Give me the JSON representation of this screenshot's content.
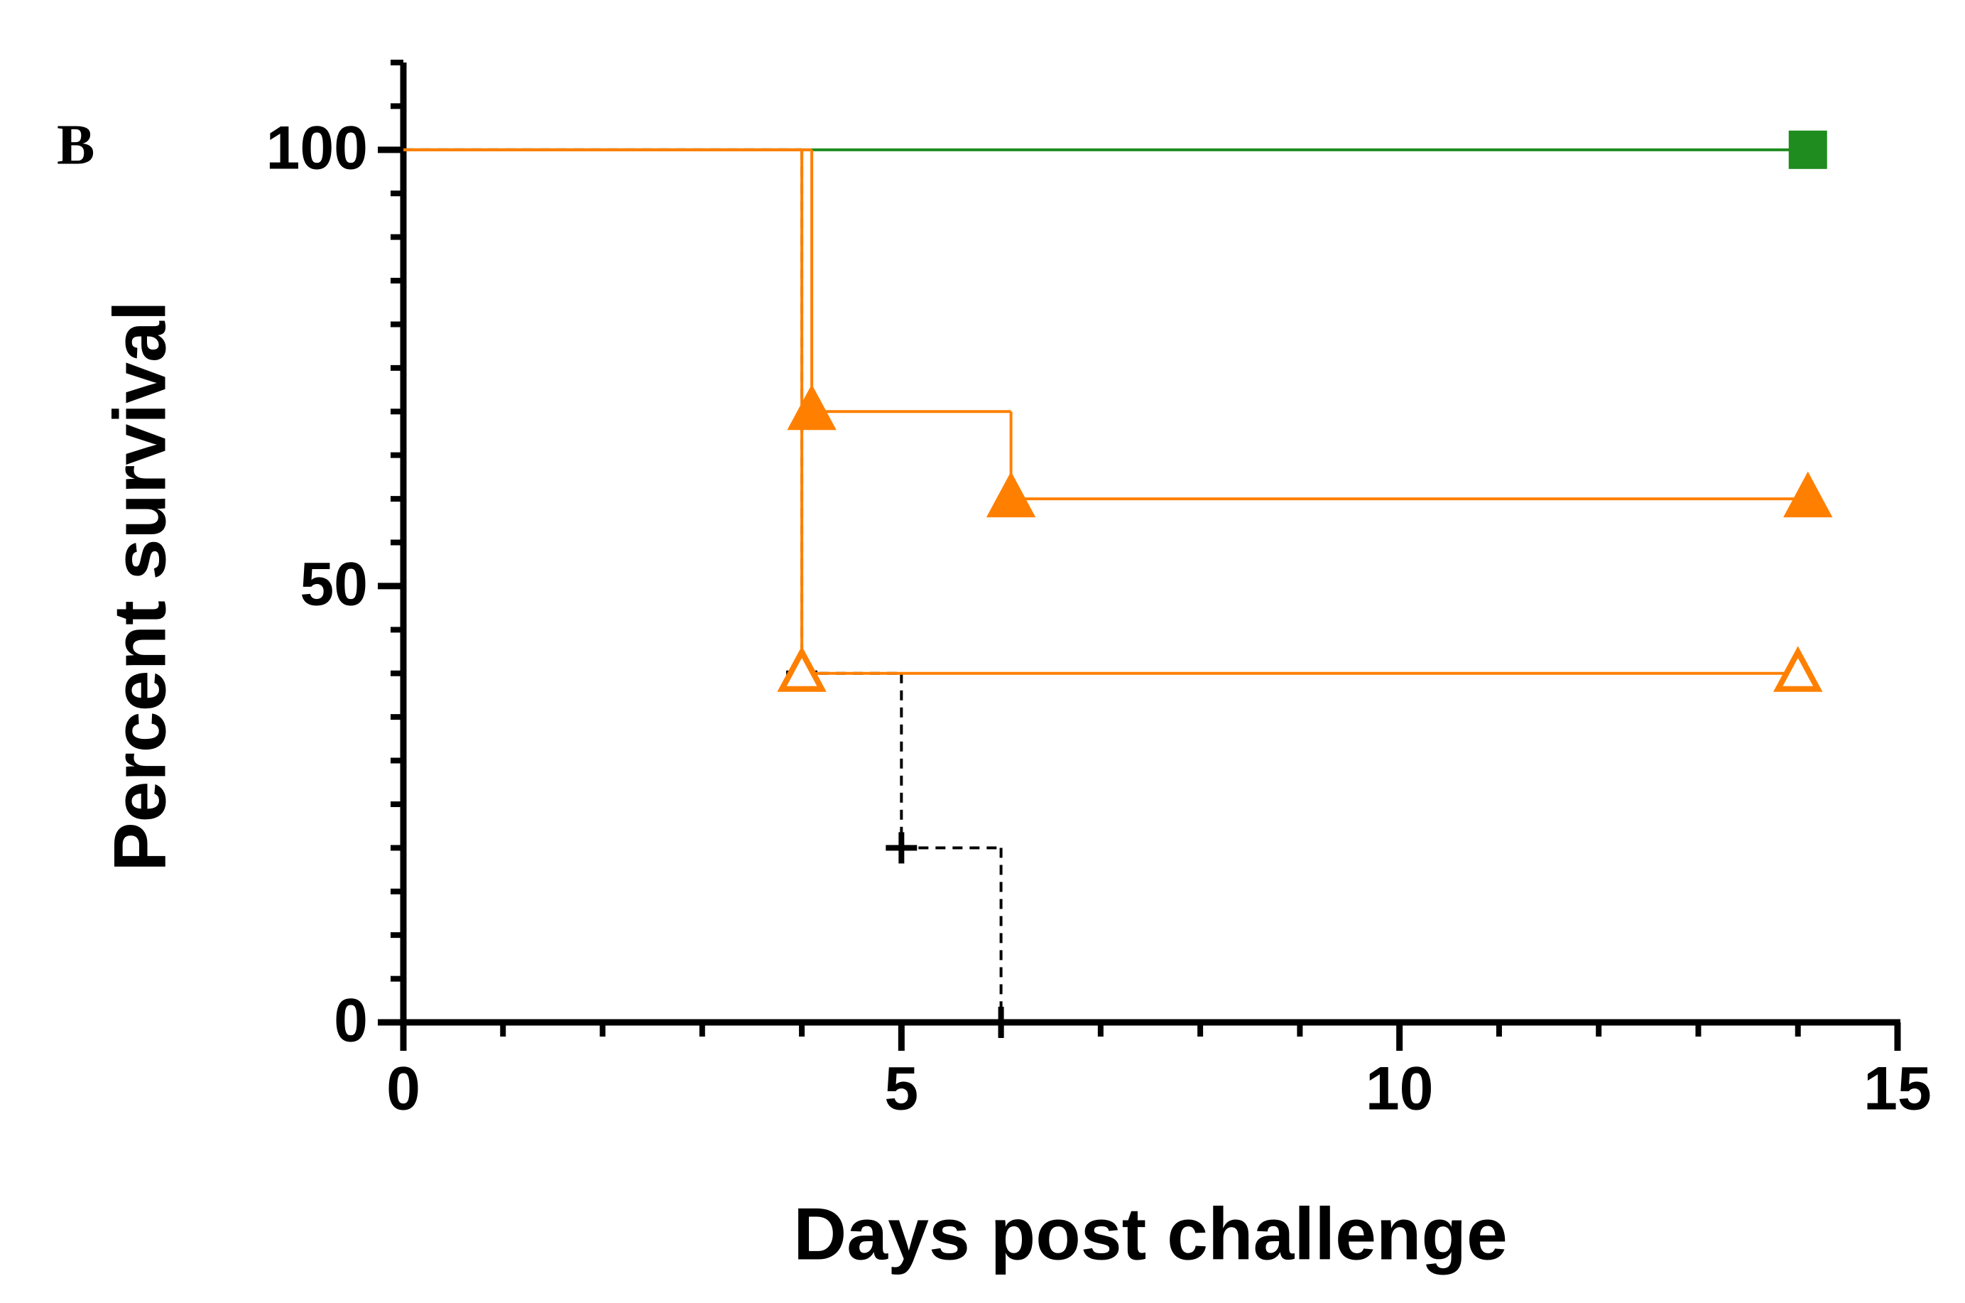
{
  "chart_data": {
    "type": "survival",
    "panel_label": "B",
    "x_label": "Days post challenge",
    "y_label": "Percent survival",
    "xlim": [
      0,
      15
    ],
    "xticks": [
      0,
      5,
      10,
      15
    ],
    "x_minor_step": 1,
    "ylim": [
      0,
      110
    ],
    "yticks": [
      0,
      50,
      100
    ],
    "y_minor_step": 5,
    "series": [
      {
        "color": "#000000",
        "line_style": "dashed",
        "marker": "plus",
        "marker_fill": false,
        "x": [
          0,
          4,
          5,
          6
        ],
        "values": [
          100,
          40,
          20,
          0
        ]
      },
      {
        "color": "#1e8c1e",
        "line_style": "solid",
        "marker": "square",
        "marker_fill": true,
        "x": [
          0,
          14.1
        ],
        "values": [
          100,
          100
        ]
      },
      {
        "color": "#ff8000",
        "line_style": "solid",
        "marker": "triangle",
        "marker_fill": false,
        "x": [
          0,
          4,
          14
        ],
        "values": [
          100,
          40,
          40
        ]
      },
      {
        "color": "#ff8000",
        "line_style": "solid",
        "marker": "triangle",
        "marker_fill": true,
        "x": [
          0,
          4.1,
          6.1,
          14.1
        ],
        "values": [
          100,
          70,
          60,
          60
        ]
      }
    ]
  }
}
